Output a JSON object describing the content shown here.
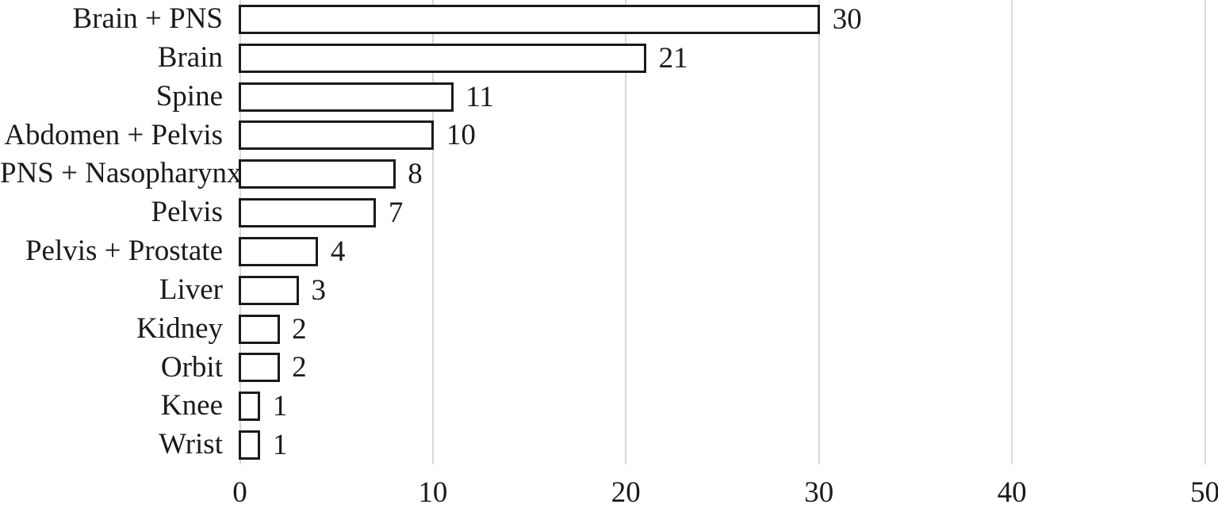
{
  "chart_data": {
    "type": "bar",
    "orientation": "horizontal",
    "title": "",
    "xlabel": "",
    "ylabel": "",
    "categories": [
      "Brain + PNS",
      "Brain",
      "Spine",
      "Abdomen + Pelvis",
      "PNS + Nasopharynx",
      "Pelvis",
      "Pelvis + Prostate",
      "Liver",
      "Kidney",
      "Orbit",
      "Knee",
      "Wrist"
    ],
    "values": [
      30,
      21,
      11,
      10,
      8,
      7,
      4,
      3,
      2,
      2,
      1,
      1
    ],
    "xlim": [
      0,
      50
    ],
    "x_ticks": [
      0,
      10,
      20,
      30,
      40,
      50
    ],
    "grid": "vertical",
    "legend": "none",
    "value_labels_shown": true,
    "colors": {
      "bar_fill": "#ffffff",
      "bar_border": "#1a1a1a",
      "gridline": "#d9d9d9",
      "text": "#1a1a1a",
      "background": "#ffffff"
    }
  }
}
